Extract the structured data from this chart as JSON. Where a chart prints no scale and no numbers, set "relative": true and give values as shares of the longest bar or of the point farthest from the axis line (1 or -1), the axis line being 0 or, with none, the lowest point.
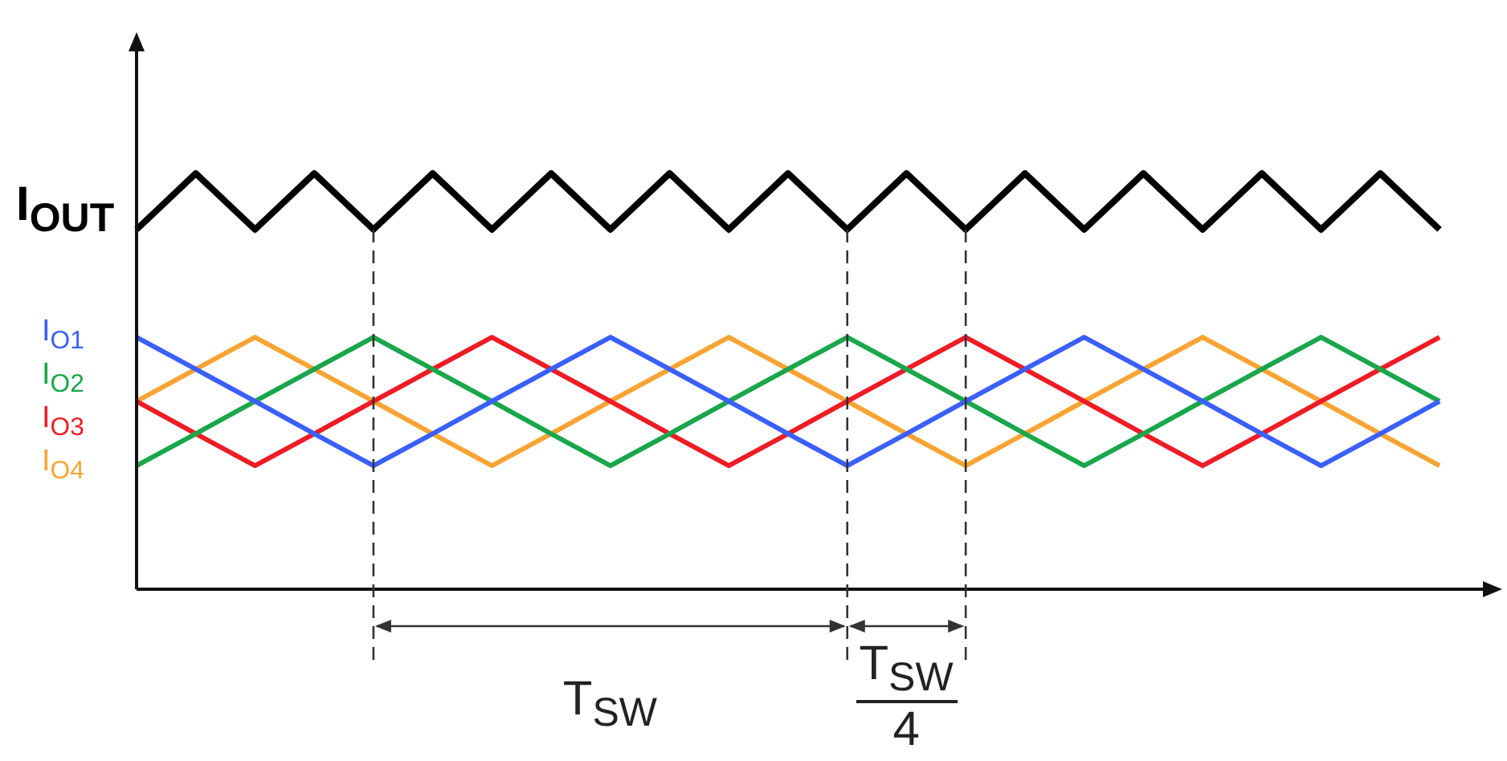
{
  "chart_data": {
    "type": "line",
    "relative": true,
    "grid": "x",
    "legend": false,
    "marker": "none",
    "line_style": "solid",
    "categories": [
      null,
      null,
      null,
      null,
      null,
      null,
      null,
      null,
      null,
      null,
      null,
      null,
      null,
      null,
      null,
      null,
      null,
      null,
      null,
      null,
      null,
      null,
      null
    ],
    "series": [
      {
        "name": "I$_{OUT}$",
        "color": "#000000",
        "values": [
          0.865,
          1,
          0.865,
          1,
          0.865,
          1,
          0.865,
          1,
          0.865,
          1,
          0.865,
          1,
          0.865,
          1,
          0.865,
          1,
          0.865,
          1,
          0.865,
          1,
          0.865,
          1,
          0.865
        ]
      },
      {
        "name": "I$_{O1}$",
        "color": "#3a5ffb",
        "values": [
          0.606,
          0.529,
          0.452,
          0.374,
          0.297,
          0.374,
          0.452,
          0.529,
          0.606,
          0.529,
          0.452,
          0.374,
          0.297,
          0.374,
          0.452,
          0.529,
          0.606,
          0.529,
          0.452,
          0.374,
          0.297,
          0.374,
          0.452
        ]
      },
      {
        "name": "I$_{O2}$",
        "color": "#1aa64a",
        "values": [
          0.297,
          0.374,
          0.452,
          0.529,
          0.606,
          0.529,
          0.452,
          0.374,
          0.297,
          0.374,
          0.452,
          0.529,
          0.606,
          0.529,
          0.452,
          0.374,
          0.297,
          0.374,
          0.452,
          0.529,
          0.606,
          0.529,
          0.452
        ]
      },
      {
        "name": "I$_{O3}$",
        "color": "#ee1c25",
        "values": [
          0.452,
          0.374,
          0.297,
          0.374,
          0.452,
          0.529,
          0.606,
          0.529,
          0.452,
          0.374,
          0.297,
          0.374,
          0.452,
          0.529,
          0.606,
          0.529,
          0.452,
          0.374,
          0.297,
          0.374,
          0.452,
          0.529,
          0.606
        ]
      },
      {
        "name": "I$_{O4}$",
        "color": "#f7a434",
        "values": [
          0.452,
          0.529,
          0.606,
          0.529,
          0.452,
          0.374,
          0.297,
          0.374,
          0.452,
          0.529,
          0.606,
          0.529,
          0.452,
          0.374,
          0.297,
          0.374,
          0.452,
          0.529,
          0.606,
          0.529,
          0.452,
          0.374,
          0.297
        ]
      }
    ],
    "annotations": [
      "T$_{SW}$",
      "T$_{SW}$",
      "4"
    ]
  }
}
